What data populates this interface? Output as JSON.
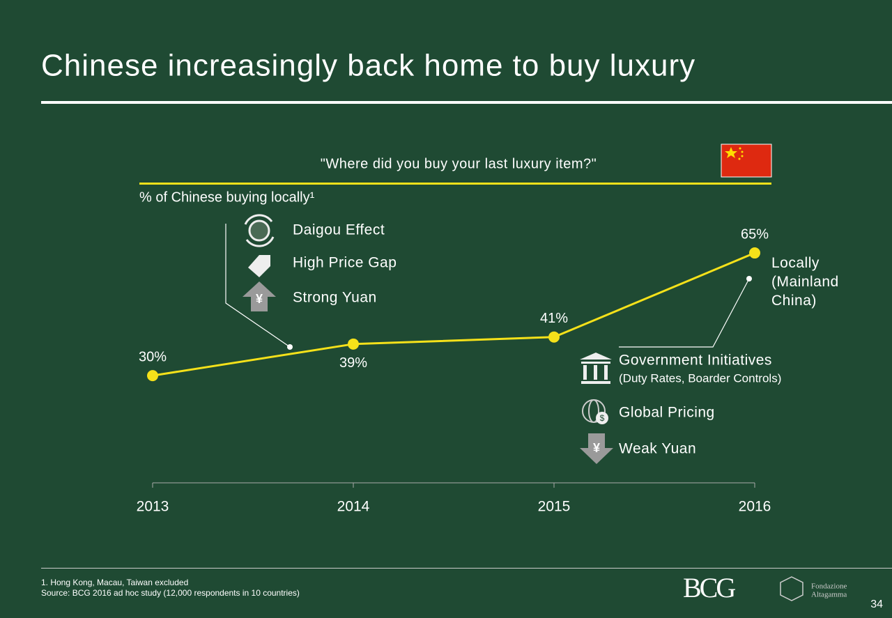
{
  "header": {
    "title": "Chinese increasingly back home to buy luxury"
  },
  "chart_data": {
    "type": "line",
    "subtitle": "\"Where did you buy your last luxury item?\"",
    "y_label": "% of Chinese buying locally¹",
    "categories": [
      "2013",
      "2014",
      "2015",
      "2016"
    ],
    "series": [
      {
        "name": "Locally (Mainland China)",
        "color": "#f5e11a",
        "values": [
          30,
          39,
          41,
          65
        ],
        "value_labels": [
          "30%",
          "39%",
          "41%",
          "65%"
        ]
      }
    ],
    "annotations": {
      "up_drivers": [
        "Daigou Effect",
        "High Price Gap",
        "Strong Yuan"
      ],
      "down_drivers": [
        "Government Initiatives",
        "Global Pricing",
        "Weak Yuan"
      ],
      "down_driver_note": "(Duty Rates, Boarder Controls)"
    }
  },
  "footer": {
    "notes": [
      "1. Hong Kong, Macau, Taiwan excluded",
      "Source: BCG 2016 ad hoc study (12,000 respondents in 10 countries)"
    ],
    "logo": "BCG",
    "partner": [
      "Fondazione",
      "Altagamma"
    ],
    "page": "34"
  }
}
